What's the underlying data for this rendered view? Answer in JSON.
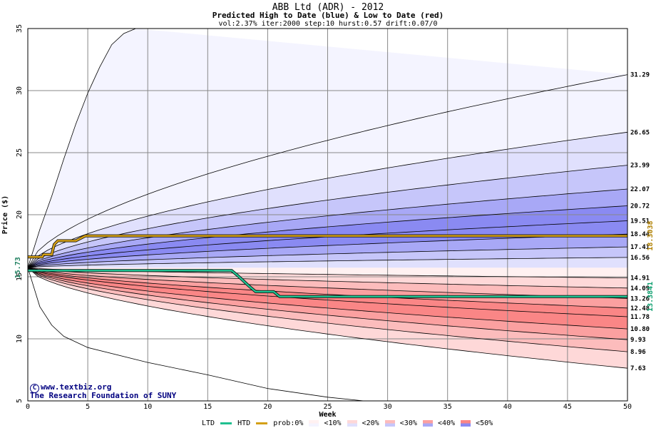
{
  "header": {
    "title": "ABB Ltd (ADR) - 2012",
    "subtitle": "Predicted High to Date (blue) &  Low to Date (red)",
    "params": "vol:2.37% iter:2000 step:10 hurst:0.57 drift:0.07/0"
  },
  "credits": {
    "line1": "www.textbiz.org",
    "line2": "The Research Foundation of SUNY"
  },
  "legend": {
    "ltd_label": "LTD",
    "htd_label": "HTD",
    "prob_label": "prob:0%",
    "levels": [
      "<10%",
      "<20%",
      "<30%",
      "<40%",
      "<50%"
    ]
  },
  "colors": {
    "htd_line": "#d4a017",
    "ltd_line": "#20c090",
    "blue_bands": [
      "#f4f4ff",
      "#e0e0fd",
      "#c6c6fa",
      "#a8a8f6",
      "#8a8af2"
    ],
    "red_bands": [
      "#fff1f1",
      "#fed8d8",
      "#fcbcbc",
      "#fba0a0",
      "#fa8686"
    ]
  },
  "chart_data": {
    "type": "area",
    "xlabel": "Week",
    "ylabel": "Price ($)",
    "xlim": [
      0,
      50
    ],
    "ylim": [
      5,
      35
    ],
    "x_ticks": [
      0,
      5,
      10,
      15,
      20,
      25,
      30,
      35,
      40,
      45,
      50
    ],
    "y_ticks": [
      5,
      10,
      15,
      20,
      25,
      30,
      35
    ],
    "grid": true,
    "start_price": 15.73,
    "start_price_label": "15.73",
    "high_quantiles_end": [
      31.29,
      26.65,
      23.99,
      22.07,
      20.72,
      19.51,
      18.44,
      17.41,
      16.56
    ],
    "low_quantiles_end": [
      14.91,
      14.09,
      13.26,
      12.48,
      11.78,
      10.8,
      9.93,
      8.96,
      7.63
    ],
    "end_labels": [
      "31.29",
      "26.65",
      "23.99",
      "22.07",
      "20.72",
      "19.51",
      "18.44",
      "17.41",
      "16.56",
      "14.91",
      "14.09",
      "13.26",
      "12.48",
      "11.78",
      "10.80",
      "9.93",
      "8.96",
      "7.63"
    ],
    "outer_high_curve": [
      [
        0,
        15.73
      ],
      [
        1,
        18.8
      ],
      [
        2,
        21.5
      ],
      [
        3,
        24.5
      ],
      [
        4,
        27.3
      ],
      [
        5,
        29.8
      ],
      [
        6,
        31.9
      ],
      [
        7,
        33.7
      ],
      [
        8,
        34.6
      ],
      [
        9,
        35
      ]
    ],
    "outer_low_curve": [
      [
        0,
        15.73
      ],
      [
        1,
        12.6
      ],
      [
        2,
        11.1
      ],
      [
        3,
        10.2
      ],
      [
        5,
        9.3
      ],
      [
        10,
        8.1
      ],
      [
        15,
        7.1
      ],
      [
        20,
        6.0
      ],
      [
        25,
        5.3
      ],
      [
        28,
        5.0
      ]
    ],
    "htd_series": {
      "name": "HTD",
      "points": [
        [
          0,
          16.6
        ],
        [
          1.2,
          16.6
        ],
        [
          1.3,
          16.8
        ],
        [
          2,
          16.8
        ],
        [
          2.2,
          17.6
        ],
        [
          2.5,
          17.9
        ],
        [
          4,
          17.9
        ],
        [
          4.8,
          18.3
        ],
        [
          50,
          18.3
        ]
      ],
      "last_label": "18.3038"
    },
    "ltd_series": {
      "name": "LTD",
      "points": [
        [
          0,
          15.5
        ],
        [
          17,
          15.5
        ],
        [
          17.5,
          15.1
        ],
        [
          18.5,
          14.2
        ],
        [
          19,
          13.8
        ],
        [
          20.5,
          13.8
        ],
        [
          21,
          13.4
        ],
        [
          50,
          13.4
        ]
      ],
      "last_label": "13.3841"
    }
  }
}
